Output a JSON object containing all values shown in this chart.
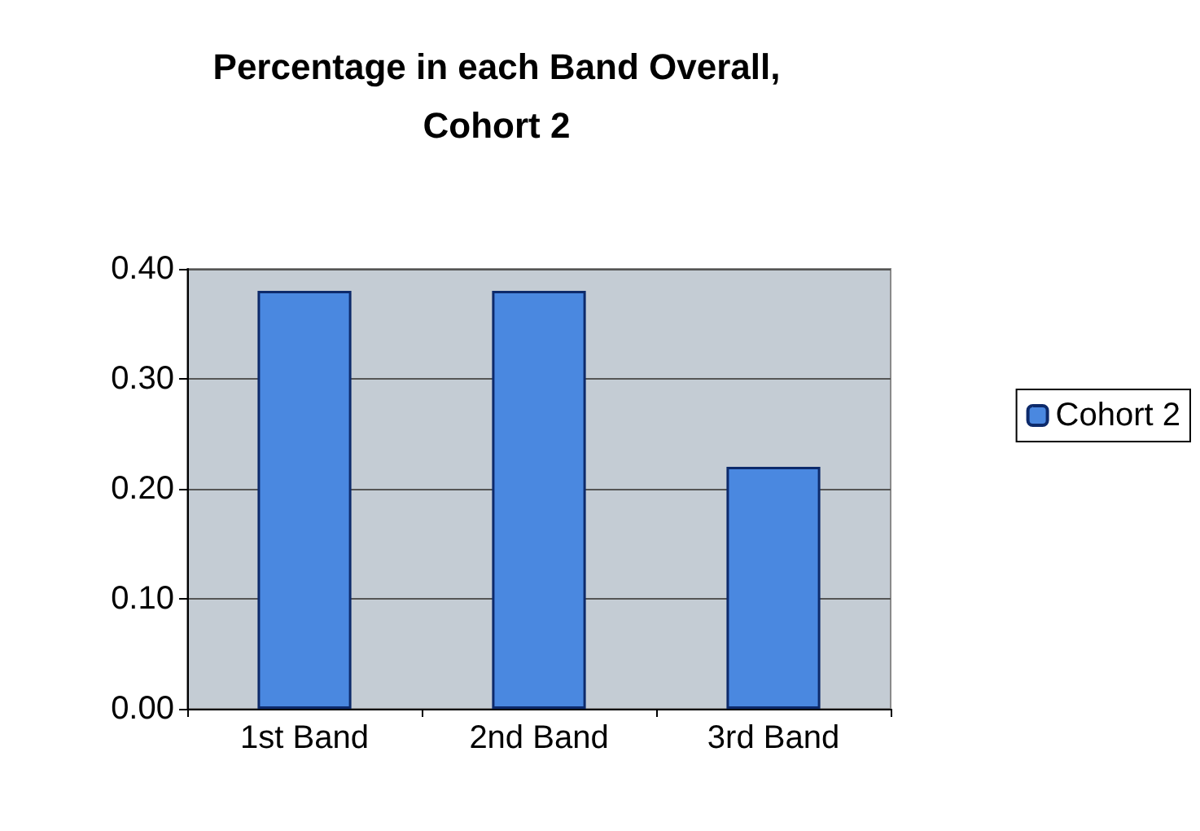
{
  "chart_data": {
    "type": "bar",
    "title": "Percentage in each Band Overall,\nCohort 2",
    "categories": [
      "1st Band",
      "2nd Band",
      "3rd Band"
    ],
    "series": [
      {
        "name": "Cohort 2",
        "color": "#4a88e0",
        "values": [
          0.38,
          0.38,
          0.22
        ]
      }
    ],
    "ylim": [
      0,
      0.4
    ],
    "yticks": [
      {
        "value": 0,
        "label": "0.00"
      },
      {
        "value": 0.1,
        "label": "0.10"
      },
      {
        "value": 0.2,
        "label": "0.20"
      },
      {
        "value": 0.3,
        "label": "0.30"
      },
      {
        "value": 0.4,
        "label": "0.40"
      }
    ],
    "grid": "y",
    "legend": "right"
  }
}
